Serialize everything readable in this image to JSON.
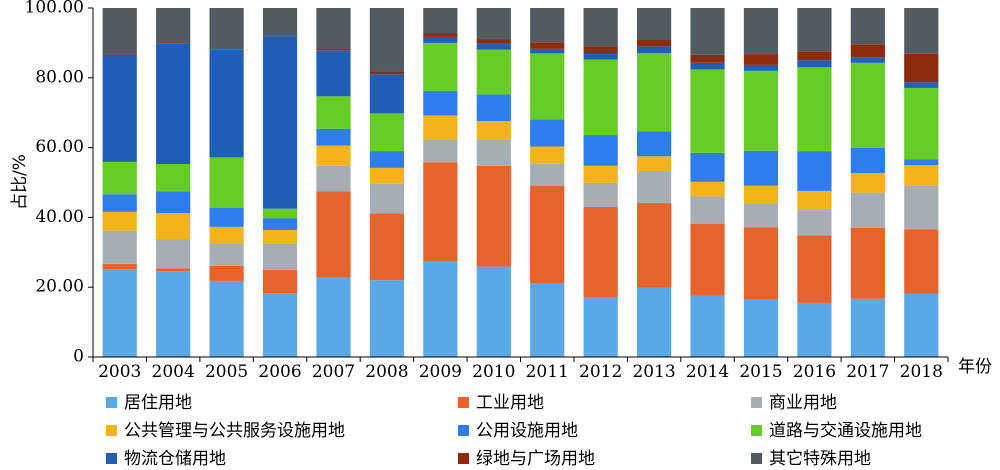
{
  "chart_data": {
    "type": "bar",
    "stacked": true,
    "title": "",
    "xlabel": "年份",
    "ylabel": "占比/%",
    "ylim": [
      0,
      100
    ],
    "yticks": [
      "0",
      "20.00",
      "40.00",
      "60.00",
      "80.00",
      "100.00"
    ],
    "grid": false,
    "legend_position": "bottom",
    "categories": [
      "2003",
      "2004",
      "2005",
      "2006",
      "2007",
      "2008",
      "2009",
      "2010",
      "2011",
      "2012",
      "2013",
      "2014",
      "2015",
      "2016",
      "2017",
      "2018"
    ],
    "series": [
      {
        "name": "居住用地",
        "color": "#5aa9e6",
        "values": [
          25.2,
          24.6,
          21.8,
          18.3,
          22.8,
          22.0,
          27.3,
          25.9,
          21.1,
          17.2,
          19.8,
          17.6,
          16.5,
          15.5,
          16.7,
          18.2
        ]
      },
      {
        "name": "工业用地",
        "color": "#e8622c",
        "values": [
          1.5,
          0.8,
          4.3,
          6.6,
          24.7,
          19.1,
          28.5,
          28.9,
          28.0,
          25.8,
          24.3,
          20.6,
          20.6,
          19.3,
          20.3,
          18.4
        ]
      },
      {
        "name": "商业用地",
        "color": "#a6adb5",
        "values": [
          9.5,
          8.4,
          6.4,
          7.7,
          7.3,
          8.5,
          6.5,
          7.5,
          6.3,
          6.9,
          8.9,
          7.8,
          7.0,
          7.3,
          10.1,
          12.5
        ]
      },
      {
        "name": "公共管理与公共服务设施用地",
        "color": "#f5b31b",
        "values": [
          5.4,
          7.4,
          4.8,
          3.8,
          5.8,
          4.6,
          6.9,
          5.3,
          4.9,
          4.9,
          4.5,
          4.2,
          5.0,
          5.5,
          5.6,
          5.9
        ]
      },
      {
        "name": "公用设施用地",
        "color": "#2e7ced",
        "values": [
          5.0,
          6.3,
          5.4,
          3.3,
          4.8,
          4.8,
          7.0,
          7.6,
          7.8,
          8.8,
          7.1,
          8.3,
          10.0,
          11.4,
          7.2,
          1.6
        ]
      },
      {
        "name": "道路与交通设施用地",
        "color": "#66cc26",
        "values": [
          9.3,
          7.8,
          14.5,
          2.8,
          9.3,
          10.8,
          13.8,
          12.9,
          18.9,
          21.6,
          22.5,
          23.9,
          22.9,
          24.0,
          24.4,
          20.5
        ]
      },
      {
        "name": "物流仓储用地",
        "color": "#1f5fba",
        "values": [
          30.8,
          34.6,
          30.8,
          49.4,
          13.2,
          11.2,
          1.7,
          1.7,
          1.3,
          1.6,
          1.9,
          1.9,
          1.7,
          2.0,
          1.6,
          1.6
        ]
      },
      {
        "name": "绿地与广场用地",
        "color": "#8a2d0e",
        "values": [
          0.3,
          0.2,
          0.2,
          0.3,
          0.6,
          0.9,
          1.0,
          1.3,
          1.9,
          2.2,
          2.0,
          2.3,
          3.1,
          2.6,
          3.7,
          8.2
        ]
      },
      {
        "name": "其它特殊用地",
        "color": "#525a62",
        "values": [
          13.0,
          9.9,
          11.8,
          7.8,
          11.5,
          18.1,
          7.3,
          8.9,
          9.8,
          11.0,
          9.0,
          13.4,
          13.2,
          12.4,
          10.4,
          13.1
        ]
      }
    ]
  }
}
